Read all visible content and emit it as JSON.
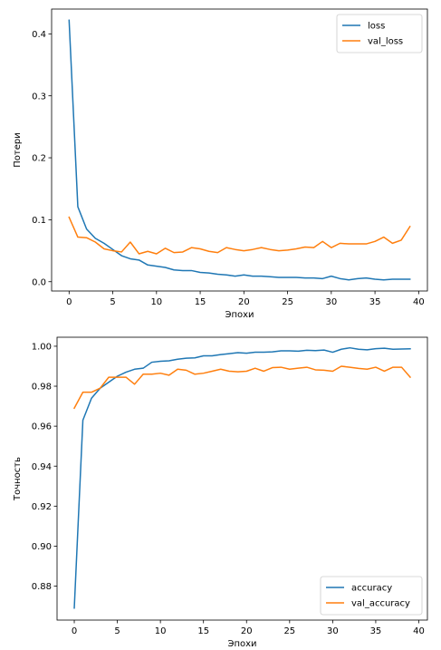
{
  "chart_data": [
    {
      "type": "line",
      "xlabel": "Эпохи",
      "ylabel": "Потери",
      "xlim": [
        -2,
        41
      ],
      "ylim": [
        -0.015,
        0.44
      ],
      "xticks": [
        0,
        5,
        10,
        15,
        20,
        25,
        30,
        35,
        40
      ],
      "yticks": [
        0.0,
        0.1,
        0.2,
        0.3,
        0.4
      ],
      "ytick_labels": [
        "0.0",
        "0.1",
        "0.2",
        "0.3",
        "0.4"
      ],
      "legend_position": "top-right",
      "grid": false,
      "x": [
        0,
        1,
        2,
        3,
        4,
        5,
        6,
        7,
        8,
        9,
        10,
        11,
        12,
        13,
        14,
        15,
        16,
        17,
        18,
        19,
        20,
        21,
        22,
        23,
        24,
        25,
        26,
        27,
        28,
        29,
        30,
        31,
        32,
        33,
        34,
        35,
        36,
        37,
        38,
        39
      ],
      "series": [
        {
          "name": "loss",
          "color": "#1f77b4",
          "values": [
            0.422,
            0.121,
            0.085,
            0.07,
            0.062,
            0.052,
            0.042,
            0.037,
            0.035,
            0.027,
            0.025,
            0.023,
            0.019,
            0.018,
            0.018,
            0.015,
            0.014,
            0.012,
            0.011,
            0.009,
            0.011,
            0.009,
            0.009,
            0.008,
            0.007,
            0.007,
            0.007,
            0.006,
            0.006,
            0.005,
            0.009,
            0.005,
            0.003,
            0.005,
            0.006,
            0.004,
            0.003,
            0.004,
            0.004,
            0.004
          ]
        },
        {
          "name": "val_loss",
          "color": "#ff7f0e",
          "values": [
            0.104,
            0.072,
            0.071,
            0.064,
            0.053,
            0.05,
            0.048,
            0.064,
            0.045,
            0.049,
            0.045,
            0.054,
            0.047,
            0.048,
            0.055,
            0.053,
            0.049,
            0.047,
            0.055,
            0.052,
            0.05,
            0.052,
            0.055,
            0.052,
            0.05,
            0.051,
            0.053,
            0.056,
            0.055,
            0.065,
            0.055,
            0.062,
            0.061,
            0.061,
            0.061,
            0.065,
            0.072,
            0.062,
            0.067,
            0.089
          ]
        }
      ]
    },
    {
      "type": "line",
      "xlabel": "Эпохи",
      "ylabel": "Точность",
      "xlim": [
        -2,
        41
      ],
      "ylim": [
        0.863,
        1.0045
      ],
      "xticks": [
        0,
        5,
        10,
        15,
        20,
        25,
        30,
        35,
        40
      ],
      "yticks": [
        0.88,
        0.9,
        0.92,
        0.94,
        0.96,
        0.98,
        1.0
      ],
      "ytick_labels": [
        "0.88",
        "0.90",
        "0.92",
        "0.94",
        "0.96",
        "0.98",
        "1.00"
      ],
      "legend_position": "bottom-right",
      "grid": false,
      "x": [
        0,
        1,
        2,
        3,
        4,
        5,
        6,
        7,
        8,
        9,
        10,
        11,
        12,
        13,
        14,
        15,
        16,
        17,
        18,
        19,
        20,
        21,
        22,
        23,
        24,
        25,
        26,
        27,
        28,
        29,
        30,
        31,
        32,
        33,
        34,
        35,
        36,
        37,
        38,
        39
      ],
      "series": [
        {
          "name": "accuracy",
          "color": "#1f77b4",
          "values": [
            0.869,
            0.963,
            0.974,
            0.979,
            0.982,
            0.985,
            0.987,
            0.9885,
            0.989,
            0.992,
            0.9925,
            0.9927,
            0.9935,
            0.994,
            0.9942,
            0.9952,
            0.9952,
            0.9958,
            0.9963,
            0.9968,
            0.9965,
            0.997,
            0.997,
            0.9972,
            0.9977,
            0.9977,
            0.9975,
            0.998,
            0.9978,
            0.9981,
            0.997,
            0.9985,
            0.9992,
            0.9985,
            0.9982,
            0.9988,
            0.999,
            0.9985,
            0.9986,
            0.9987
          ]
        },
        {
          "name": "val_accuracy",
          "color": "#ff7f0e",
          "values": [
            0.969,
            0.977,
            0.977,
            0.979,
            0.9845,
            0.9845,
            0.9845,
            0.981,
            0.986,
            0.986,
            0.9865,
            0.9855,
            0.9885,
            0.988,
            0.986,
            0.9865,
            0.9875,
            0.9885,
            0.9875,
            0.9872,
            0.9875,
            0.989,
            0.9875,
            0.9893,
            0.9895,
            0.9885,
            0.989,
            0.9895,
            0.9882,
            0.988,
            0.9875,
            0.99,
            0.9895,
            0.9889,
            0.9885,
            0.9895,
            0.9875,
            0.9895,
            0.9895,
            0.9845
          ]
        }
      ]
    }
  ]
}
